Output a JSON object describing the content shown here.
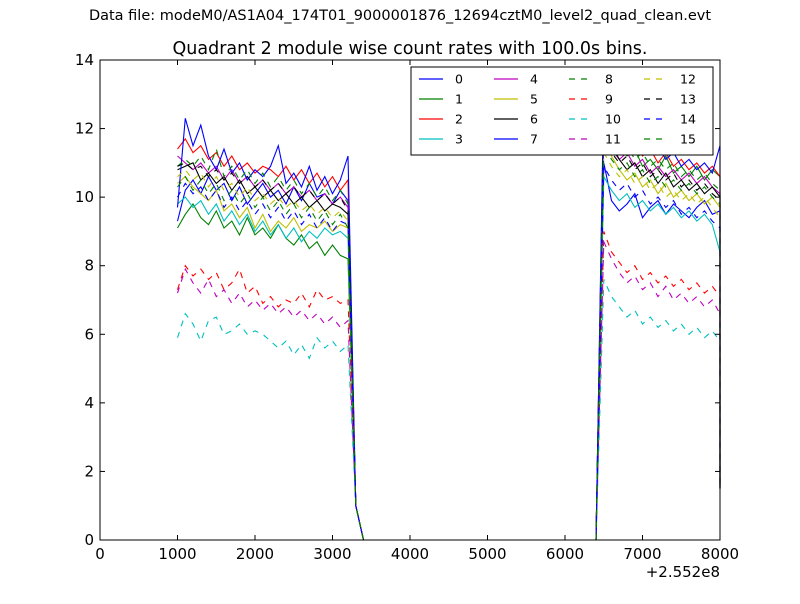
{
  "suptitle": "Data file: modeM0/AS1A04_174T01_9000001876_12694cztM0_level2_quad_clean.evt",
  "chart_data": {
    "type": "line",
    "title": "Quadrant 2 module wise count rates with 100.0s bins.",
    "xlabel": "",
    "ylabel": "",
    "xlim": [
      0,
      8000
    ],
    "ylim": [
      0,
      14
    ],
    "x_offset_label": "+2.552e8",
    "x_ticks": [
      "0",
      "1000",
      "2000",
      "3000",
      "4000",
      "5000",
      "6000",
      "7000",
      "8000"
    ],
    "y_ticks": [
      "0",
      "2",
      "4",
      "6",
      "8",
      "10",
      "12",
      "14"
    ],
    "grid": false,
    "legend_position": "top-right",
    "legend_columns": 4,
    "gap_start": 3200,
    "gap_end": 6400,
    "series": [
      {
        "name": "0",
        "color": "#0000ff",
        "dash": false,
        "seg1": [
          9.3,
          10.2,
          10.5,
          10.1,
          10.6,
          10.2,
          10.4,
          9.9,
          10.3,
          9.8,
          10.1,
          10.4,
          10.0,
          10.2,
          9.8,
          10.3,
          9.9,
          10.4,
          10.0,
          10.1,
          9.8,
          10.2,
          9.9
        ],
        "seg2": [
          11.0,
          9.9,
          9.6,
          9.8,
          10.1,
          9.4,
          9.7,
          9.9,
          9.5,
          9.8,
          9.6,
          9.4,
          9.7,
          9.9,
          9.5,
          9.6
        ]
      },
      {
        "name": "1",
        "color": "#008000",
        "dash": false,
        "seg1": [
          9.1,
          9.5,
          9.8,
          9.4,
          9.2,
          9.6,
          9.1,
          9.3,
          8.9,
          9.4,
          8.9,
          9.1,
          8.8,
          9.2,
          8.8,
          8.6,
          8.9,
          8.5,
          8.7,
          8.3,
          8.6,
          8.3,
          8.2
        ],
        "seg2": [
          12.5,
          11.9,
          11.5,
          11.2,
          11.4,
          10.9,
          11.1,
          10.8,
          11.2,
          10.7,
          10.9,
          10.6,
          10.9,
          10.5,
          10.8,
          10.6
        ]
      },
      {
        "name": "2",
        "color": "#ff0000",
        "dash": false,
        "seg1": [
          11.4,
          11.7,
          11.3,
          11.5,
          11.1,
          11.3,
          10.9,
          11.2,
          10.8,
          11.0,
          10.7,
          10.9,
          10.8,
          10.6,
          10.9,
          10.5,
          10.8,
          10.4,
          10.7,
          10.3,
          10.6,
          10.2,
          10.5
        ],
        "seg2": [
          12.9,
          12.2,
          11.7,
          11.4,
          11.6,
          11.2,
          11.4,
          11.0,
          11.3,
          10.9,
          11.1,
          10.8,
          11.0,
          10.7,
          10.9,
          10.6
        ]
      },
      {
        "name": "3",
        "color": "#00bfbf",
        "dash": false,
        "seg1": [
          9.8,
          10.0,
          9.7,
          9.9,
          9.5,
          9.8,
          9.3,
          9.6,
          9.2,
          9.5,
          9.0,
          9.3,
          8.9,
          9.2,
          8.8,
          9.1,
          8.7,
          9.0,
          8.8,
          9.1,
          8.9,
          9.0,
          8.8
        ],
        "seg2": [
          10.6,
          10.2,
          9.9,
          10.1,
          9.7,
          9.9,
          9.6,
          9.8,
          9.5,
          9.7,
          9.4,
          9.6,
          9.3,
          9.5,
          9.2,
          8.4
        ]
      },
      {
        "name": "4",
        "color": "#bf00bf",
        "dash": false,
        "seg1": [
          11.2,
          11.0,
          10.8,
          11.0,
          10.7,
          10.9,
          10.5,
          10.8,
          10.4,
          10.6,
          10.3,
          10.5,
          10.2,
          10.4,
          10.1,
          10.3,
          10.0,
          10.2,
          9.9,
          10.1,
          9.8,
          10.0,
          9.7
        ],
        "seg2": [
          11.8,
          11.4,
          11.1,
          11.3,
          10.9,
          11.1,
          10.7,
          10.9,
          10.6,
          10.8,
          10.5,
          10.7,
          10.4,
          10.6,
          10.3,
          10.1
        ]
      },
      {
        "name": "5",
        "color": "#bfbf00",
        "dash": false,
        "seg1": [
          10.4,
          10.6,
          10.3,
          10.1,
          9.9,
          10.2,
          9.6,
          9.8,
          9.4,
          9.7,
          9.1,
          9.5,
          9.0,
          9.3,
          9.1,
          9.4,
          9.0,
          9.2,
          9.1,
          9.3,
          9.0,
          9.2,
          9.1
        ],
        "seg2": [
          11.9,
          11.2,
          10.8,
          10.5,
          10.7,
          10.3,
          10.5,
          10.1,
          10.4,
          10.0,
          10.2,
          9.9,
          10.1,
          9.8,
          10.0,
          9.7
        ]
      },
      {
        "name": "6",
        "color": "#000000",
        "dash": false,
        "seg1": [
          10.8,
          10.9,
          11.0,
          10.5,
          10.7,
          10.4,
          10.6,
          10.2,
          10.5,
          10.1,
          10.3,
          10.0,
          10.2,
          9.9,
          10.1,
          9.8,
          10.0,
          9.7,
          9.9,
          9.6,
          9.8,
          9.7,
          9.5
        ],
        "seg2": [
          12.3,
          11.5,
          11.1,
          10.8,
          11.0,
          10.6,
          10.8,
          10.4,
          10.7,
          10.3,
          10.5,
          10.2,
          10.4,
          10.1,
          10.3,
          10.0
        ]
      },
      {
        "name": "7",
        "color": "#0000ff",
        "dash": false,
        "seg1": [
          9.7,
          12.3,
          11.5,
          12.1,
          11.2,
          10.8,
          11.4,
          10.7,
          11.0,
          10.5,
          10.8,
          10.6,
          10.9,
          11.5,
          10.4,
          10.7,
          10.3,
          10.9,
          10.2,
          10.6,
          10.1,
          10.5,
          11.2
        ],
        "seg2": [
          13.2,
          12.6,
          12.2,
          11.8,
          11.5,
          11.7,
          11.3,
          11.5,
          11.1,
          11.3,
          10.9,
          11.1,
          10.8,
          11.0,
          10.7,
          11.5
        ]
      },
      {
        "name": "8",
        "color": "#008000",
        "dash": true,
        "seg1": [
          10.9,
          11.1,
          10.9,
          11.2,
          10.8,
          11.4,
          10.6,
          10.9,
          10.5,
          10.8,
          10.4,
          10.7,
          10.3,
          10.6,
          10.2,
          10.5,
          10.1,
          10.4,
          10.0,
          10.3,
          9.9,
          10.2,
          9.8
        ],
        "seg2": [
          12.0,
          11.6,
          11.3,
          11.5,
          11.1,
          11.3,
          10.9,
          11.1,
          10.8,
          11.0,
          10.6,
          10.8,
          10.5,
          10.7,
          10.4,
          10.2
        ]
      },
      {
        "name": "9",
        "color": "#ff0000",
        "dash": true,
        "seg1": [
          7.3,
          8.0,
          7.7,
          7.9,
          7.6,
          7.8,
          7.3,
          7.5,
          7.9,
          7.2,
          7.4,
          6.9,
          7.1,
          6.8,
          7.0,
          6.9,
          7.2,
          6.8,
          7.3,
          7.0,
          7.1,
          6.9,
          7.0
        ],
        "seg2": [
          9.0,
          8.4,
          8.1,
          7.8,
          8.0,
          7.6,
          7.8,
          7.5,
          7.7,
          7.4,
          7.6,
          7.3,
          7.5,
          7.2,
          7.4,
          7.1
        ]
      },
      {
        "name": "10",
        "color": "#00bfbf",
        "dash": true,
        "seg1": [
          5.9,
          6.6,
          6.3,
          5.8,
          6.4,
          6.5,
          6.0,
          6.1,
          6.3,
          6.0,
          6.1,
          6.0,
          5.8,
          5.6,
          5.8,
          5.4,
          5.7,
          5.3,
          5.9,
          5.6,
          5.8,
          5.5,
          5.7
        ],
        "seg2": [
          7.6,
          7.1,
          6.8,
          6.5,
          6.7,
          6.3,
          6.5,
          6.2,
          6.4,
          6.1,
          6.3,
          6.0,
          6.2,
          5.9,
          6.1,
          5.8
        ]
      },
      {
        "name": "11",
        "color": "#bf00bf",
        "dash": true,
        "seg1": [
          7.2,
          7.9,
          7.5,
          7.2,
          7.6,
          7.1,
          7.3,
          6.9,
          7.2,
          6.8,
          7.0,
          6.7,
          6.9,
          6.6,
          6.8,
          6.5,
          6.7,
          6.4,
          6.6,
          6.3,
          6.5,
          6.2,
          6.4
        ],
        "seg2": [
          8.7,
          8.2,
          7.8,
          7.5,
          7.7,
          7.3,
          7.5,
          7.1,
          7.4,
          7.0,
          7.2,
          6.9,
          7.1,
          6.8,
          7.0,
          6.6
        ]
      },
      {
        "name": "12",
        "color": "#bfbf00",
        "dash": true,
        "seg1": [
          10.6,
          10.8,
          10.5,
          10.7,
          10.3,
          10.6,
          10.2,
          10.4,
          10.0,
          10.3,
          9.9,
          10.1,
          9.8,
          10.0,
          9.7,
          9.9,
          9.6,
          9.8,
          9.5,
          9.7,
          9.4,
          9.6,
          9.3
        ],
        "seg2": [
          11.3,
          10.9,
          10.6,
          10.8,
          10.4,
          10.6,
          10.2,
          10.4,
          10.0,
          10.2,
          9.9,
          10.1,
          9.8,
          10.0,
          9.7,
          9.4
        ]
      },
      {
        "name": "13",
        "color": "#000000",
        "dash": true,
        "seg1": [
          10.9,
          11.0,
          10.8,
          10.9,
          10.6,
          10.8,
          10.5,
          10.7,
          10.4,
          10.6,
          10.3,
          10.5,
          10.2,
          10.4,
          10.1,
          10.3,
          10.0,
          10.2,
          9.9,
          10.1,
          9.8,
          10.0,
          9.6
        ],
        "seg2": [
          11.7,
          11.3,
          11.0,
          11.2,
          10.8,
          11.0,
          10.6,
          10.8,
          10.5,
          10.7,
          10.3,
          10.5,
          10.2,
          10.4,
          10.1,
          9.9
        ]
      },
      {
        "name": "14",
        "color": "#0000ff",
        "dash": true,
        "seg1": [
          10.0,
          10.4,
          10.1,
          10.3,
          9.9,
          10.2,
          9.7,
          10.0,
          9.6,
          9.9,
          9.5,
          9.8,
          9.4,
          9.7,
          9.3,
          9.6,
          9.2,
          9.5,
          9.1,
          9.4,
          9.0,
          9.3,
          9.2
        ],
        "seg2": [
          10.9,
          10.5,
          10.2,
          10.4,
          10.0,
          10.2,
          9.8,
          10.0,
          9.7,
          9.9,
          9.5,
          9.7,
          9.4,
          9.6,
          9.3,
          9.1
        ]
      },
      {
        "name": "15",
        "color": "#008000",
        "dash": true,
        "seg1": [
          10.3,
          10.6,
          10.2,
          10.5,
          10.1,
          10.4,
          9.9,
          10.2,
          9.8,
          10.1,
          9.7,
          10.0,
          9.6,
          9.9,
          9.5,
          9.8,
          9.4,
          9.7,
          9.3,
          9.6,
          9.2,
          9.5,
          9.1
        ],
        "seg2": [
          11.5,
          11.1,
          10.8,
          11.0,
          10.6,
          10.8,
          10.4,
          10.6,
          10.3,
          10.5,
          10.2,
          10.4,
          10.1,
          10.3,
          10.0,
          9.8
        ]
      }
    ]
  }
}
